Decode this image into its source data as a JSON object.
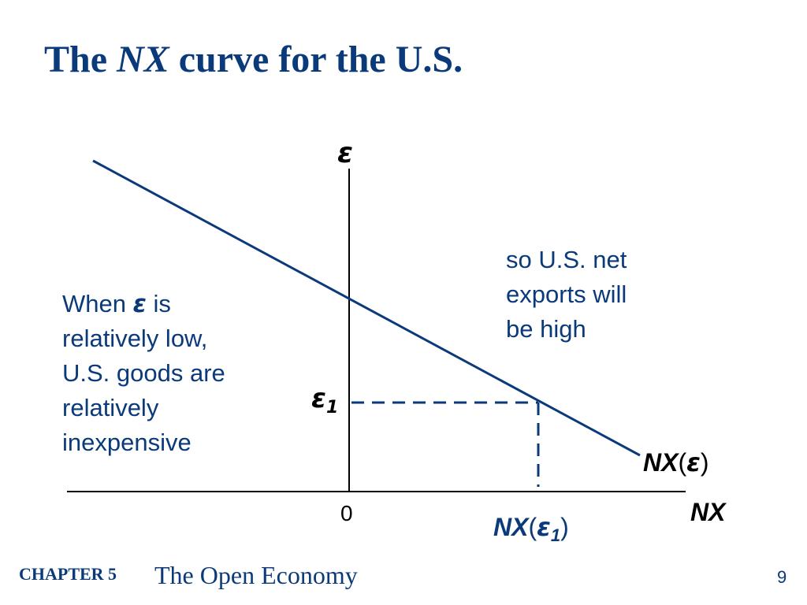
{
  "slide": {
    "title_prefix": "The ",
    "title_italic": "NX",
    "title_suffix": " curve for the U.S."
  },
  "diagram": {
    "y_axis_label": "ε",
    "x_axis_label": "NX",
    "origin_label": "0",
    "epsilon1_symbol": "ε",
    "epsilon1_subscript": "1",
    "curve_label_nx": "NX",
    "curve_label_arg": "ε",
    "nx1_label_nx": "NX",
    "nx1_label_arg": "ε",
    "nx1_label_subscript": "1",
    "line_color": "#0b3a7a",
    "axis_color": "#000000"
  },
  "notes": {
    "left_line1_pre": "When ",
    "left_line1_greek": "ε",
    "left_line1_post": " is",
    "left_rest_1": "relatively low,",
    "left_rest_2": "U.S. goods are",
    "left_rest_3": "relatively",
    "left_rest_4": "inexpensive",
    "right_1": "so U.S. net",
    "right_2": "exports will",
    "right_3": "be high"
  },
  "footer": {
    "chapter": "CHAPTER 5",
    "topic": "The Open Economy",
    "page": "9"
  }
}
